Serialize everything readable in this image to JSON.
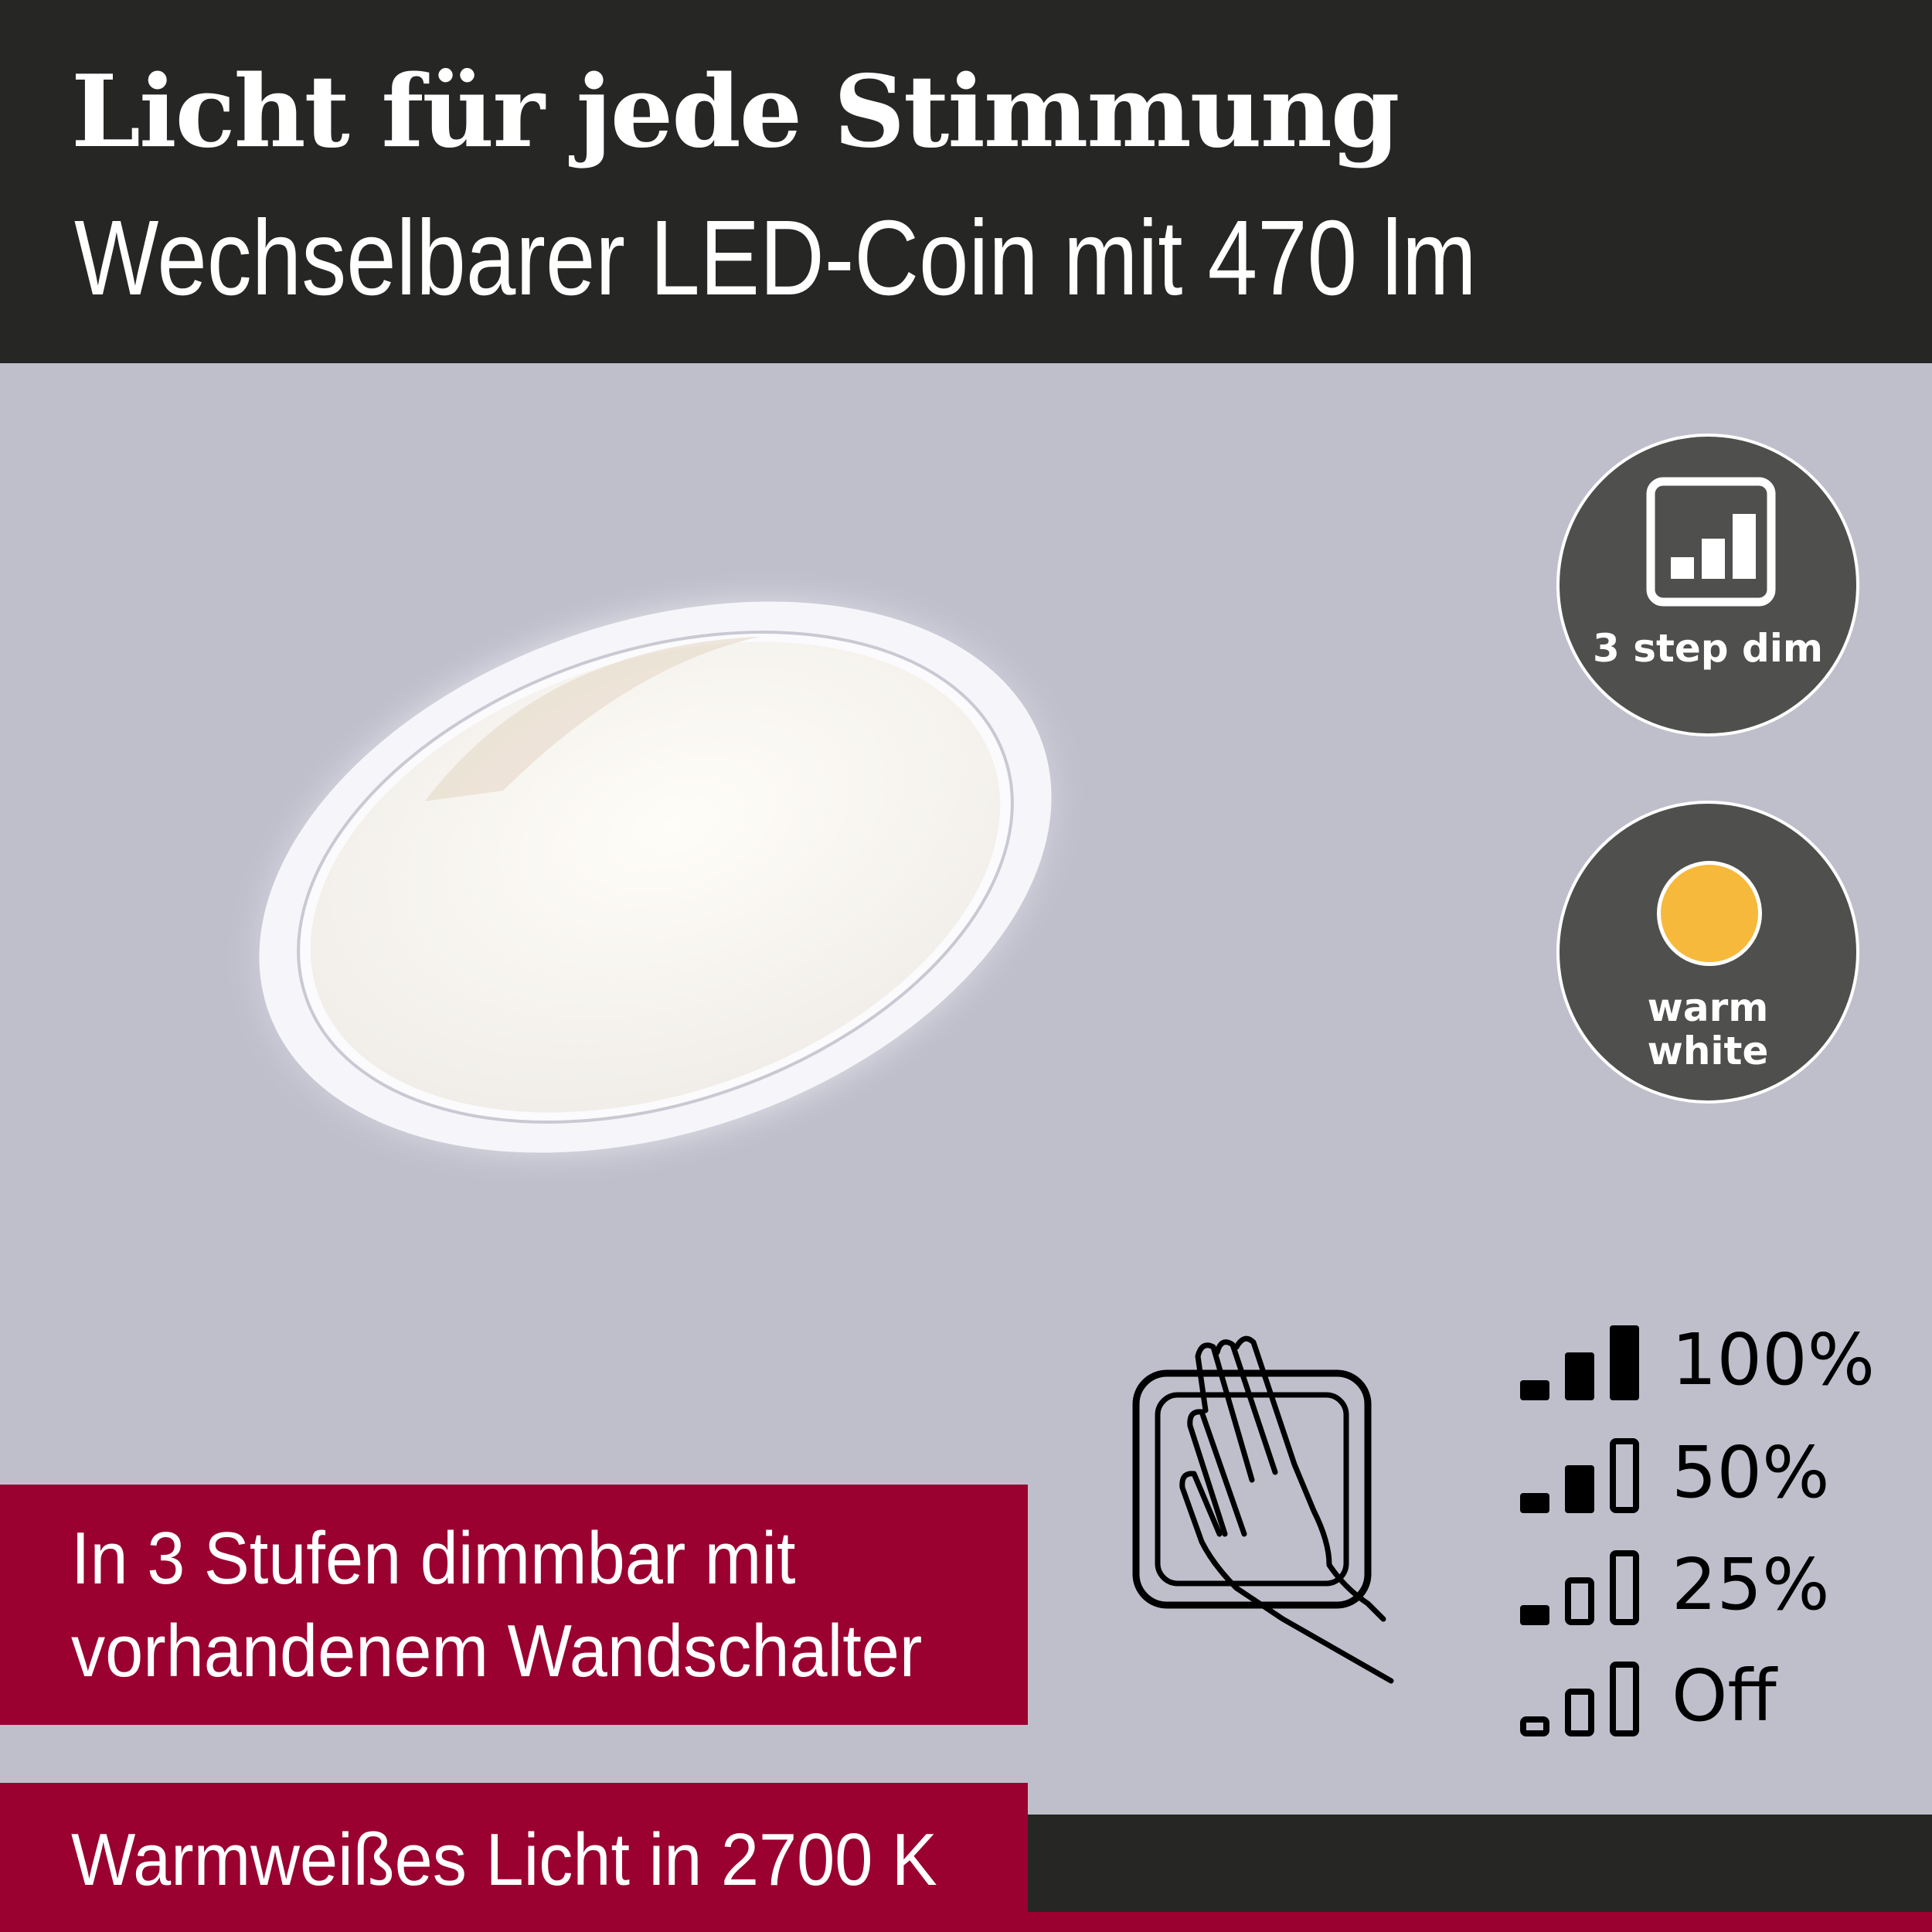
{
  "header": {
    "title": "Licht für jede Stimmung",
    "subtitle": "Wechselbarer LED-Coin mit 470 lm"
  },
  "badges": [
    {
      "icon": "dimmer-bars-icon",
      "label": "3 step dim"
    },
    {
      "icon": "warm-light-dot-icon",
      "line1": "warm",
      "line2": "white",
      "dot_color": "#f7b93b"
    }
  ],
  "features": {
    "dimming_line1": "In 3 Stufen dimmbar mit",
    "dimming_line2": "vorhandenem Wandschalter",
    "color_temp": "Warmweißes Licht in 2700 K"
  },
  "dim_levels": [
    {
      "label": "100%",
      "filled_bars": 3
    },
    {
      "label": "50%",
      "filled_bars": 2
    },
    {
      "label": "25%",
      "filled_bars": 1
    },
    {
      "label": "Off",
      "filled_bars": 0
    }
  ],
  "colors": {
    "header_bg": "#262624",
    "background": "#bfbfcc",
    "accent_red": "#9a0030",
    "badge_bg": "#4f4f4d",
    "warm_dot": "#f7b93b"
  }
}
